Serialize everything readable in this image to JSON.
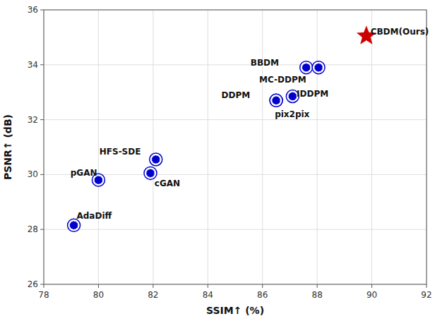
{
  "chart_data": {
    "type": "scatter",
    "x_label": "SSIM↑ (%)",
    "y_label": "PSNR↑ (dB)",
    "xlim": [
      78,
      92
    ],
    "ylim": [
      26,
      36
    ],
    "xticks": [
      78,
      80,
      82,
      84,
      86,
      88,
      90,
      92
    ],
    "yticks": [
      26,
      28,
      30,
      32,
      34,
      36
    ],
    "grid": true,
    "series": [
      {
        "color": "#0000cc",
        "marker": "circle",
        "x": [
          79.1,
          80.0,
          81.9,
          82.1,
          86.5,
          86.5,
          87.1,
          87.6,
          88.05
        ],
        "values": [
          28.15,
          29.8,
          30.05,
          30.55,
          32.7,
          32.7,
          32.85,
          33.9,
          33.9
        ],
        "annotations": [
          "AdaDiff",
          "pGAN",
          "cGAN",
          "HFS-SDE",
          "DDPM",
          "pix2pix",
          "IDDPM",
          "BBDM",
          "MC-DDPM"
        ]
      },
      {
        "color": "#cc0000",
        "marker": "star",
        "x": [
          89.8
        ],
        "values": [
          35.05
        ],
        "annotations": [
          "CBDM(Ours)"
        ]
      }
    ]
  }
}
